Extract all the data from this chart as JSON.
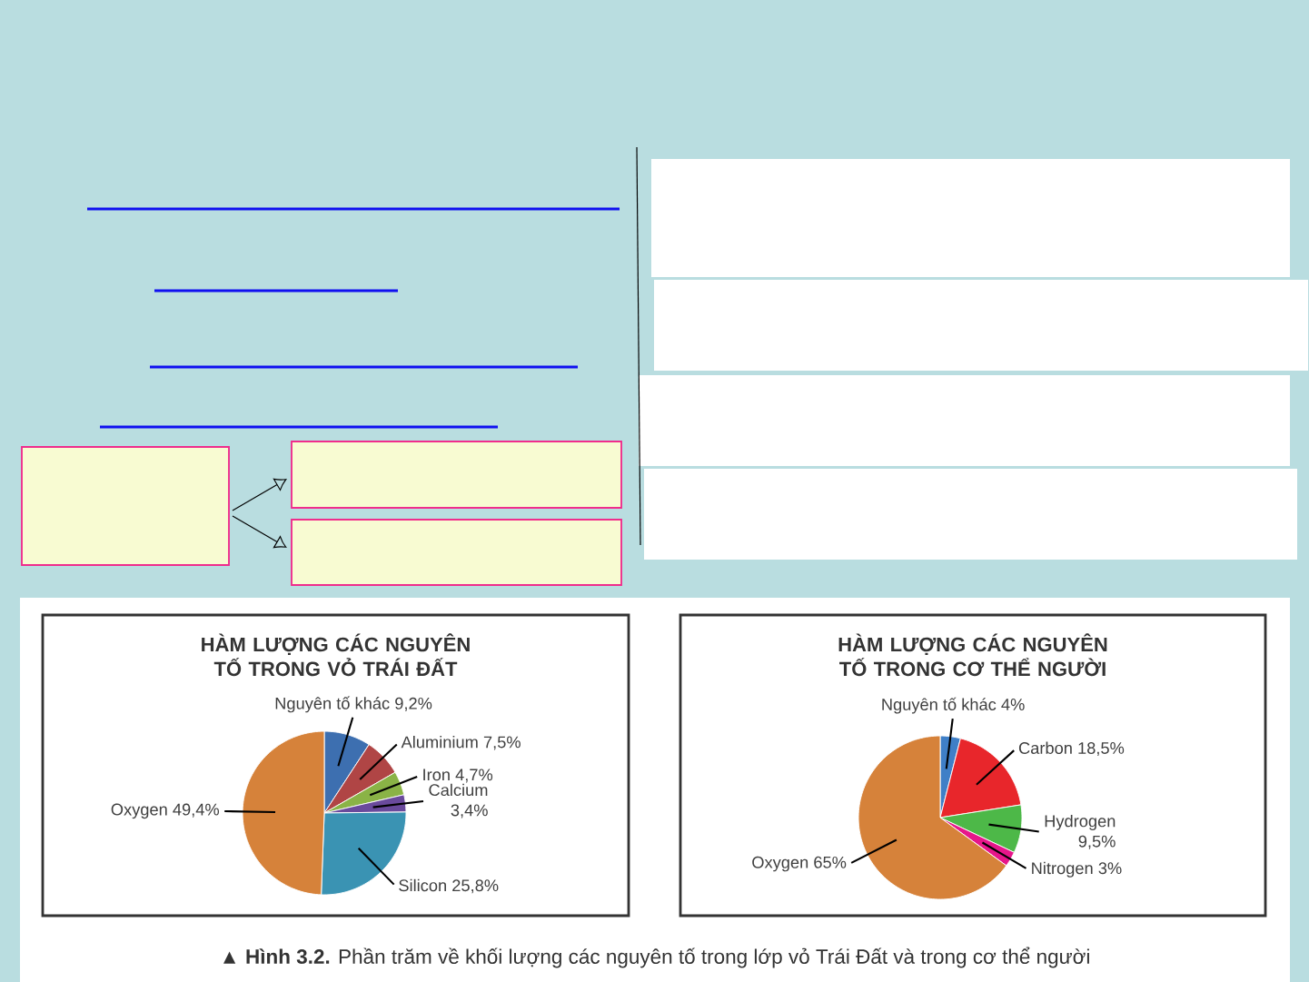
{
  "chart_data": [
    {
      "type": "pie",
      "title": "HÀM LƯỢNG CÁC NGUYÊN TỐ TRONG VỎ TRÁI ĐẤT",
      "categories": [
        "Nguyên tố khác",
        "Aluminium",
        "Iron",
        "Calcium",
        "Silicon",
        "Oxygen"
      ],
      "values": [
        9.2,
        7.5,
        4.7,
        3.4,
        25.8,
        49.4
      ],
      "value_labels": [
        "9,2%",
        "7,5%",
        "4,7%",
        "3,4%",
        "25,8%",
        "49,4%"
      ],
      "colors": [
        "#3d6fb0",
        "#b04545",
        "#8ab346",
        "#6a4a9c",
        "#3a93b3",
        "#d6823a"
      ]
    },
    {
      "type": "pie",
      "title": "HÀM LƯỢNG CÁC NGUYÊN TỐ TRONG CƠ THỂ NGƯỜI",
      "categories": [
        "Nguyên tố khác",
        "Carbon",
        "Hydrogen",
        "Nitrogen",
        "Oxygen"
      ],
      "values": [
        4,
        18.5,
        9.5,
        3,
        65
      ],
      "value_labels": [
        "4%",
        "18,5%",
        "9,5%",
        "3%",
        "65%"
      ],
      "colors": [
        "#3f7fc7",
        "#e8262b",
        "#4db848",
        "#e6168a",
        "#d6823a"
      ],
      "annotations": [
        "▲ **Hình 3.2.** Phần trăm về khối lượng các nguyên tố trong lớp vỏ Trái Đất và trong cơ thể người"
      ]
    }
  ]
}
